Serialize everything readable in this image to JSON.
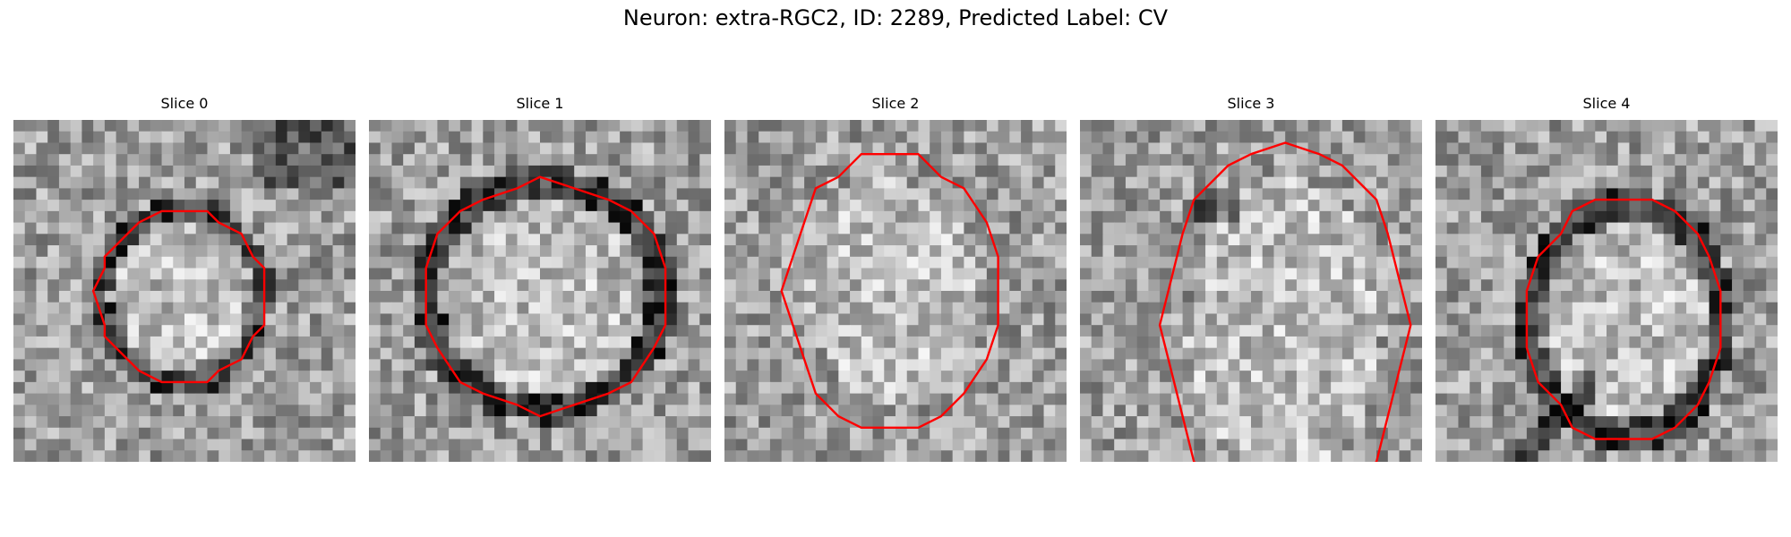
{
  "figure": {
    "title": "Neuron: extra-RGC2, ID: 2289, Predicted Label: CV",
    "contour_color": "#ff0000",
    "panels": [
      {
        "title": "Slice 0",
        "seed": 11,
        "dark_ring": true
      },
      {
        "title": "Slice 1",
        "seed": 23,
        "dark_ring": true
      },
      {
        "title": "Slice 2",
        "seed": 37,
        "dark_ring": false
      },
      {
        "title": "Slice 3",
        "seed": 53,
        "dark_ring": false
      },
      {
        "title": "Slice 4",
        "seed": 71,
        "dark_ring": true
      }
    ]
  }
}
